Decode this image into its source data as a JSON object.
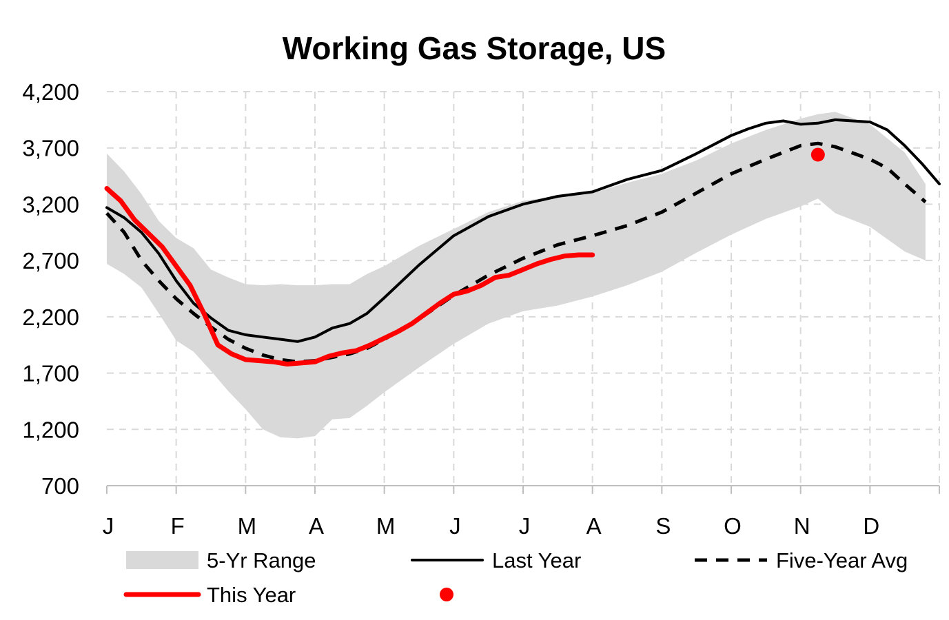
{
  "chart_data": {
    "type": "line",
    "title": "Working Gas Storage, US",
    "xlabel": "",
    "ylabel": "",
    "ylim": [
      700,
      4200
    ],
    "yticks": [
      "4,200",
      "3,700",
      "3,200",
      "2,700",
      "2,200",
      "1,700",
      "1,200",
      "700"
    ],
    "ytick_values": [
      4200,
      3700,
      3200,
      2700,
      2200,
      1700,
      1200,
      700
    ],
    "months": [
      "J",
      "F",
      "M",
      "A",
      "M",
      "J",
      "J",
      "A",
      "S",
      "O",
      "N",
      "D"
    ],
    "grid": true,
    "legend_position": "bottom",
    "x_units": "month index (0 = start of January, 12 = end of December)",
    "series": [
      {
        "name": "5-Yr Range",
        "kind": "band",
        "color": "#d9d9d9",
        "x": [
          0,
          0.25,
          0.5,
          0.75,
          1,
          1.25,
          1.5,
          1.75,
          2,
          2.25,
          2.5,
          2.75,
          3,
          3.25,
          3.5,
          3.75,
          4,
          4.5,
          5,
          5.5,
          6,
          6.5,
          7,
          7.5,
          8,
          8.5,
          9,
          9.5,
          10,
          10.25,
          10.5,
          11,
          11.5,
          11.8
        ],
        "high": [
          3650,
          3490,
          3290,
          3050,
          2900,
          2810,
          2620,
          2550,
          2490,
          2480,
          2490,
          2480,
          2480,
          2490,
          2490,
          2580,
          2650,
          2830,
          2980,
          3130,
          3230,
          3270,
          3300,
          3390,
          3470,
          3590,
          3740,
          3860,
          3960,
          4000,
          4020,
          3910,
          3660,
          3380
        ],
        "low": [
          2670,
          2580,
          2460,
          2230,
          1990,
          1890,
          1720,
          1540,
          1380,
          1200,
          1130,
          1120,
          1140,
          1290,
          1300,
          1410,
          1530,
          1750,
          1960,
          2140,
          2250,
          2300,
          2380,
          2480,
          2600,
          2770,
          2930,
          3070,
          3180,
          3250,
          3120,
          3000,
          2780,
          2700
        ]
      },
      {
        "name": "Last Year",
        "kind": "line",
        "color": "#000000",
        "x": [
          0,
          0.25,
          0.5,
          0.75,
          1,
          1.25,
          1.5,
          1.75,
          2,
          2.25,
          2.5,
          2.75,
          3,
          3.25,
          3.5,
          3.75,
          4,
          4.5,
          5,
          5.5,
          6,
          6.5,
          7,
          7.5,
          8,
          8.5,
          9,
          9.25,
          9.5,
          9.75,
          10,
          10.25,
          10.5,
          11,
          11.25,
          11.5,
          11.75,
          12
        ],
        "values": [
          3170,
          3080,
          2950,
          2760,
          2520,
          2320,
          2190,
          2080,
          2040,
          2020,
          2000,
          1980,
          2020,
          2100,
          2140,
          2230,
          2370,
          2660,
          2920,
          3090,
          3200,
          3270,
          3310,
          3420,
          3500,
          3650,
          3810,
          3870,
          3920,
          3940,
          3910,
          3920,
          3950,
          3930,
          3860,
          3720,
          3560,
          3380
        ]
      },
      {
        "name": "Five-Year Avg",
        "kind": "dashed",
        "color": "#000000",
        "x": [
          0,
          0.25,
          0.5,
          0.75,
          1,
          1.25,
          1.5,
          1.75,
          2,
          2.25,
          2.5,
          2.75,
          3,
          3.25,
          3.5,
          3.75,
          4,
          4.5,
          5,
          5.5,
          6,
          6.5,
          7,
          7.5,
          8,
          8.5,
          9,
          9.5,
          10,
          10.25,
          10.5,
          11,
          11.25,
          11.5,
          11.8
        ],
        "values": [
          3120,
          2950,
          2700,
          2520,
          2360,
          2230,
          2110,
          2000,
          1920,
          1860,
          1820,
          1800,
          1810,
          1840,
          1870,
          1920,
          2000,
          2180,
          2390,
          2570,
          2720,
          2840,
          2920,
          3010,
          3130,
          3300,
          3470,
          3600,
          3720,
          3740,
          3710,
          3600,
          3520,
          3380,
          3220
        ]
      },
      {
        "name": "This Year",
        "kind": "line",
        "color": "#ff0000",
        "x": [
          0,
          0.2,
          0.4,
          0.6,
          0.8,
          1,
          1.2,
          1.4,
          1.6,
          1.8,
          2,
          2.2,
          2.4,
          2.6,
          2.8,
          3,
          3.2,
          3.4,
          3.6,
          3.8,
          4,
          4.2,
          4.4,
          4.6,
          4.8,
          5,
          5.2,
          5.4,
          5.6,
          5.8,
          6,
          6.2,
          6.4,
          6.6,
          6.8,
          7
        ],
        "values": [
          3340,
          3230,
          3060,
          2940,
          2820,
          2650,
          2480,
          2230,
          1950,
          1870,
          1820,
          1810,
          1800,
          1780,
          1790,
          1800,
          1850,
          1880,
          1900,
          1950,
          2010,
          2070,
          2140,
          2230,
          2320,
          2400,
          2430,
          2480,
          2550,
          2570,
          2620,
          2670,
          2710,
          2740,
          2750,
          2750
        ]
      },
      {
        "name": "",
        "kind": "point",
        "color": "#ff0000",
        "x": [
          10.25
        ],
        "values": [
          3640
        ]
      }
    ],
    "legend": [
      {
        "label": "5-Yr Range",
        "kind": "band"
      },
      {
        "label": "Last Year",
        "kind": "line"
      },
      {
        "label": "Five-Year Avg",
        "kind": "dashed"
      },
      {
        "label": "This Year",
        "kind": "line"
      },
      {
        "label": "",
        "kind": "point"
      }
    ]
  }
}
